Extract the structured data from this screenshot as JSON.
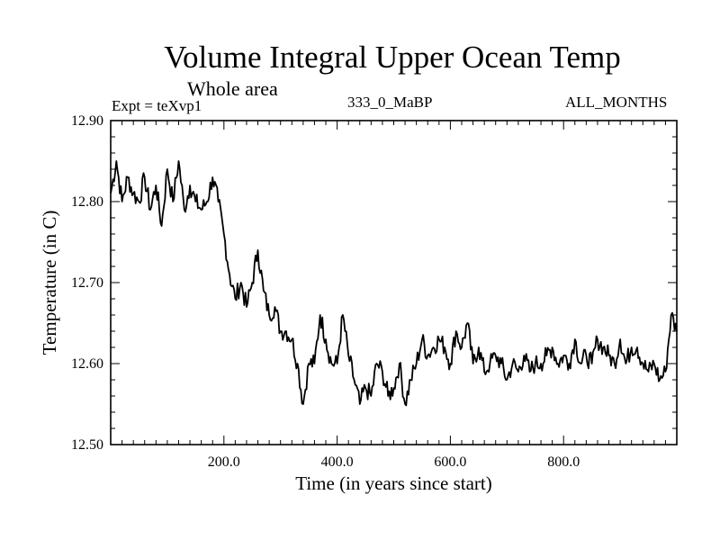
{
  "header": {
    "title": "Volume Integral Upper Ocean Temp",
    "subtitle": "Whole area",
    "expt": "Expt = teXvp1",
    "run": "333_0_MaBP",
    "months": "ALL_MONTHS"
  },
  "chart_data": {
    "type": "line",
    "title": "Volume Integral Upper Ocean Temp",
    "xlabel": "Time (in years since start)",
    "ylabel": "Temperature (in C)",
    "xlim": [
      0,
      1000
    ],
    "ylim": [
      12.5,
      12.9
    ],
    "x_ticks": [
      200,
      400,
      600,
      800
    ],
    "x_tick_labels": [
      "200.0",
      "400.0",
      "600.0",
      "800.0"
    ],
    "y_ticks": [
      12.5,
      12.6,
      12.7,
      12.8,
      12.9
    ],
    "y_tick_labels": [
      "12.50",
      "12.60",
      "12.70",
      "12.80",
      "12.90"
    ],
    "grid": false,
    "series": [
      {
        "name": "teXvp1",
        "color": "#000000",
        "x": [
          0,
          10,
          20,
          30,
          40,
          50,
          60,
          70,
          80,
          90,
          100,
          110,
          120,
          130,
          140,
          150,
          160,
          170,
          180,
          190,
          200,
          210,
          220,
          230,
          240,
          250,
          260,
          270,
          280,
          290,
          300,
          310,
          320,
          330,
          340,
          350,
          360,
          370,
          380,
          390,
          400,
          410,
          420,
          430,
          440,
          450,
          460,
          470,
          480,
          490,
          500,
          510,
          520,
          530,
          540,
          550,
          560,
          570,
          580,
          590,
          600,
          610,
          620,
          630,
          640,
          650,
          660,
          670,
          680,
          690,
          700,
          710,
          720,
          730,
          740,
          750,
          760,
          770,
          780,
          790,
          800,
          810,
          820,
          830,
          840,
          850,
          860,
          870,
          880,
          890,
          900,
          910,
          920,
          930,
          940,
          950,
          960,
          970,
          980,
          990,
          1000
        ],
        "values": [
          12.81,
          12.85,
          12.8,
          12.83,
          12.81,
          12.8,
          12.83,
          12.79,
          12.82,
          12.77,
          12.84,
          12.8,
          12.85,
          12.79,
          12.82,
          12.8,
          12.79,
          12.8,
          12.83,
          12.8,
          12.76,
          12.71,
          12.68,
          12.7,
          12.67,
          12.7,
          12.74,
          12.69,
          12.66,
          12.67,
          12.64,
          12.64,
          12.63,
          12.6,
          12.55,
          12.6,
          12.6,
          12.66,
          12.63,
          12.6,
          12.6,
          12.66,
          12.61,
          12.58,
          12.55,
          12.57,
          12.56,
          12.6,
          12.59,
          12.56,
          12.57,
          12.6,
          12.55,
          12.58,
          12.6,
          12.63,
          12.61,
          12.62,
          12.63,
          12.62,
          12.6,
          12.64,
          12.62,
          12.65,
          12.6,
          12.62,
          12.59,
          12.6,
          12.61,
          12.6,
          12.58,
          12.6,
          12.59,
          12.61,
          12.59,
          12.6,
          12.6,
          12.61,
          12.62,
          12.6,
          12.61,
          12.6,
          12.63,
          12.6,
          12.61,
          12.6,
          12.63,
          12.62,
          12.61,
          12.6,
          12.63,
          12.6,
          12.62,
          12.62,
          12.6,
          12.59,
          12.6,
          12.58,
          12.59,
          12.66,
          12.64
        ]
      }
    ]
  }
}
